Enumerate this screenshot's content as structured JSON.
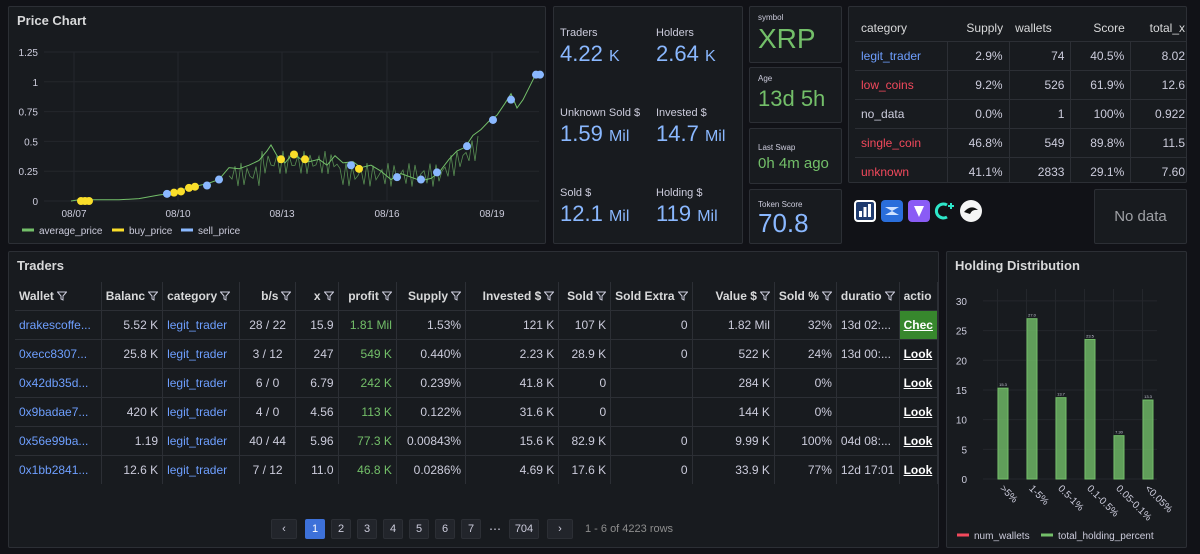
{
  "price_chart": {
    "title": "Price Chart",
    "yticks": [
      "1.25",
      "1",
      "0.75",
      "0.5",
      "0.25",
      "0"
    ],
    "xticks": [
      "08/07",
      "08/10",
      "08/13",
      "08/16",
      "08/19"
    ],
    "legend": [
      "average_price",
      "buy_price",
      "sell_price"
    ],
    "colors": {
      "avg": "#73bf69",
      "buy": "#fade2a",
      "sell": "#8ab8ff"
    }
  },
  "stats": {
    "traders": {
      "label": "Traders",
      "value": "4.22",
      "unit": "K"
    },
    "holders": {
      "label": "Holders",
      "value": "2.64",
      "unit": "K"
    },
    "unknown_sold": {
      "label": "Unknown Sold $",
      "value": "1.59",
      "unit": "Mil"
    },
    "invested": {
      "label": "Invested $",
      "value": "14.7",
      "unit": "Mil"
    },
    "sold": {
      "label": "Sold $",
      "value": "12.1",
      "unit": "Mil"
    },
    "holding": {
      "label": "Holding $",
      "value": "119",
      "unit": "Mil"
    }
  },
  "token": {
    "symbol_label": "symbol",
    "symbol": "XRP",
    "age_label": "Age",
    "age": "13d 5h",
    "swap_label": "Last Swap",
    "swap": "0h 4m ago",
    "score_label": "Token Score",
    "score": "70.8"
  },
  "category_table": {
    "headers": [
      "category",
      "Supply",
      "wallets",
      "Score",
      "total_x"
    ],
    "rows": [
      {
        "category": "legit_trader",
        "supply": "2.9%",
        "wallets": "74",
        "score": "40.5%",
        "total_x": "8.02"
      },
      {
        "category": "low_coins",
        "supply": "9.2%",
        "wallets": "526",
        "score": "61.9%",
        "total_x": "12.6"
      },
      {
        "category": "no_data",
        "supply": "0.0%",
        "wallets": "1",
        "score": "100%",
        "total_x": "0.922"
      },
      {
        "category": "single_coin",
        "supply": "46.8%",
        "wallets": "549",
        "score": "89.8%",
        "total_x": "11.5"
      },
      {
        "category": "unknown",
        "supply": "41.1%",
        "wallets": "2833",
        "score": "29.1%",
        "total_x": "7.60"
      }
    ]
  },
  "no_data": "No data",
  "traders": {
    "title": "Traders",
    "headers": [
      "Wallet",
      "Balanc",
      "category",
      "b/s",
      "x",
      "profit",
      "Supply",
      "Invested $",
      "Sold",
      "Sold Extra",
      "Value $",
      "Sold %",
      "duratio",
      "actio"
    ],
    "rows": [
      [
        "drakescoffe...",
        "5.52 K",
        "legit_trader",
        "28 / 22",
        "15.9",
        "1.81 Mil",
        "1.53%",
        "121 K",
        "107 K",
        "0",
        "1.82 Mil",
        "32%",
        "13d 02:...",
        "Chec"
      ],
      [
        "0xecc8307...",
        "25.8 K",
        "legit_trader",
        "3 / 12",
        "247",
        "549 K",
        "0.440%",
        "2.23 K",
        "28.9 K",
        "0",
        "522 K",
        "24%",
        "13d 00:...",
        "Look"
      ],
      [
        "0x42db35d...",
        "",
        "legit_trader",
        "6 / 0",
        "6.79",
        "242 K",
        "0.239%",
        "41.8 K",
        "0",
        "",
        "284 K",
        "0%",
        "",
        "Look"
      ],
      [
        "0x9badae7...",
        "420 K",
        "legit_trader",
        "4 / 0",
        "4.56",
        "113 K",
        "0.122%",
        "31.6 K",
        "0",
        "",
        "144 K",
        "0%",
        "",
        "Look"
      ],
      [
        "0x56e99ba...",
        "1.19",
        "legit_trader",
        "40 / 44",
        "5.96",
        "77.3 K",
        "0.00843%",
        "15.6 K",
        "82.9 K",
        "0",
        "9.99 K",
        "100%",
        "04d 08:...",
        "Look"
      ],
      [
        "0x1bb2841...",
        "12.6 K",
        "legit_trader",
        "7 / 12",
        "11.0",
        "46.8 K",
        "0.0286%",
        "4.69 K",
        "17.6 K",
        "0",
        "33.9 K",
        "77%",
        "12d 17:01",
        "Look"
      ]
    ],
    "pager": {
      "prev": "‹",
      "pages": [
        "1",
        "2",
        "3",
        "4",
        "5",
        "6",
        "7"
      ],
      "ellipsis": "⋯",
      "last": "704",
      "next": "›",
      "summary": "1 - 6 of 4223 rows"
    }
  },
  "holding": {
    "title": "Holding Distribution",
    "legend": [
      "num_wallets",
      "total_holding_percent"
    ]
  },
  "chart_data": {
    "type": "bar",
    "categories": [
      ">5%",
      "1-5%",
      "0.5-1%",
      "0.1-0.5%",
      "0.05-0.1%",
      "<0.05%"
    ],
    "series": [
      {
        "name": "num_wallets",
        "values": [
          0,
          0,
          0,
          0,
          0,
          0
        ]
      },
      {
        "name": "total_holding_percent",
        "values": [
          15.3,
          27.0,
          13.7,
          23.5,
          7.3,
          13.3
        ]
      }
    ],
    "data_labels": [
      "15.3",
      "27.0",
      "13.7",
      "23.5",
      "7.30",
      "13.3"
    ],
    "yticks": [
      "0",
      "5",
      "10",
      "15",
      "20",
      "25",
      "30"
    ],
    "ylim": [
      0,
      32
    ],
    "colors": [
      "#f2495c",
      "#73bf69"
    ]
  }
}
